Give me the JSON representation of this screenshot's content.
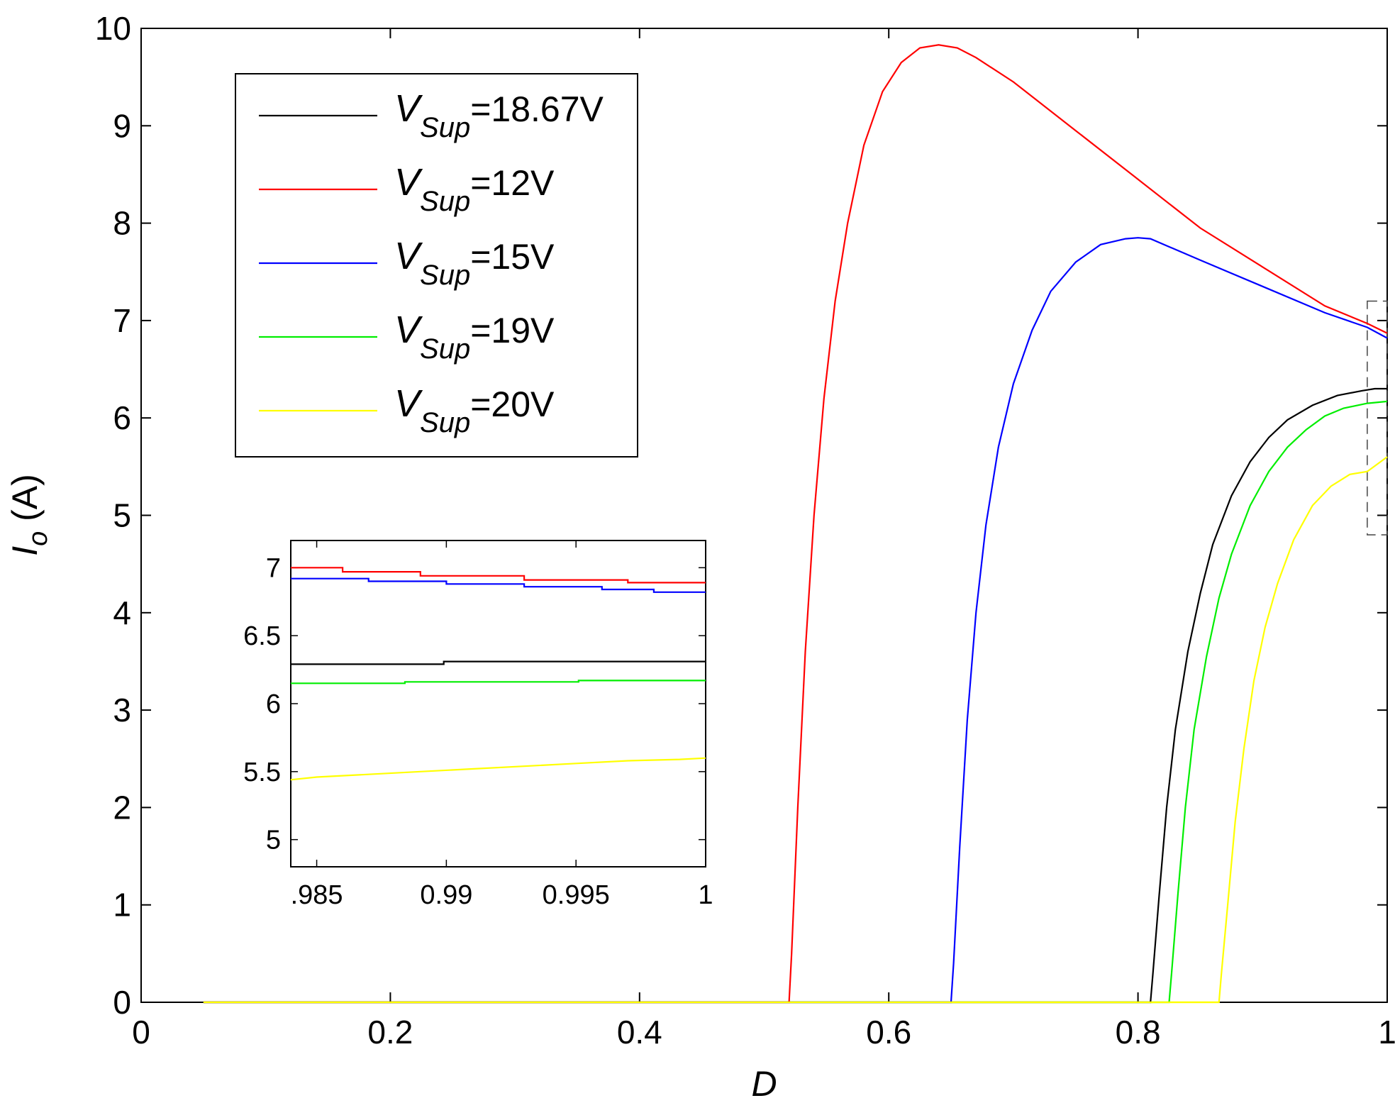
{
  "chart_data": [
    {
      "type": "line",
      "xlabel": "D",
      "ylabel": {
        "main": "I",
        "sub": "o",
        "unit": "(A)"
      },
      "xlim": [
        0,
        1
      ],
      "ylim": [
        0,
        10
      ],
      "xticks": [
        0,
        0.2,
        0.4,
        0.6,
        0.8,
        1
      ],
      "xtick_labels": [
        "0",
        "0.2",
        "0.4",
        "0.6",
        "0.8",
        "1"
      ],
      "yticks": [
        0,
        1,
        2,
        3,
        4,
        5,
        6,
        7,
        8,
        9,
        10
      ],
      "ytick_labels": [
        "0",
        "1",
        "2",
        "3",
        "4",
        "5",
        "6",
        "7",
        "8",
        "9",
        "10"
      ],
      "grid": false,
      "legend_position": "top-left",
      "zoom_box": {
        "x": [
          0.984,
          1.0
        ],
        "y": [
          4.8,
          7.2
        ]
      },
      "series": [
        {
          "name": "=18.67V",
          "label_main": "V",
          "label_sub": "Sup",
          "label_rest": "=18.67V",
          "color": "#000000",
          "x": [
            0.05,
            0.81,
            0.812,
            0.817,
            0.823,
            0.83,
            0.84,
            0.85,
            0.86,
            0.875,
            0.89,
            0.905,
            0.92,
            0.94,
            0.96,
            0.98,
            0.99,
            1.0
          ],
          "y": [
            0,
            0,
            0.3,
            1.1,
            2.0,
            2.8,
            3.6,
            4.2,
            4.7,
            5.2,
            5.55,
            5.8,
            5.98,
            6.13,
            6.23,
            6.28,
            6.3,
            6.3
          ]
        },
        {
          "name": "=12V",
          "label_main": "V",
          "label_sub": "Sup",
          "label_rest": "=12V",
          "color": "#ff0000",
          "x": [
            0.05,
            0.52,
            0.522,
            0.527,
            0.533,
            0.54,
            0.548,
            0.557,
            0.567,
            0.58,
            0.595,
            0.61,
            0.625,
            0.64,
            0.655,
            0.67,
            0.7,
            0.75,
            0.8,
            0.85,
            0.9,
            0.95,
            0.984,
            1.0
          ],
          "y": [
            0,
            0,
            0.5,
            2.0,
            3.6,
            5.0,
            6.2,
            7.2,
            8.0,
            8.8,
            9.35,
            9.65,
            9.8,
            9.83,
            9.8,
            9.7,
            9.45,
            8.95,
            8.45,
            7.95,
            7.55,
            7.15,
            6.97,
            6.87
          ]
        },
        {
          "name": "=15V",
          "label_main": "V",
          "label_sub": "Sup",
          "label_rest": "=15V",
          "color": "#0000ff",
          "x": [
            0.05,
            0.65,
            0.652,
            0.657,
            0.663,
            0.67,
            0.678,
            0.688,
            0.7,
            0.715,
            0.73,
            0.75,
            0.77,
            0.79,
            0.8,
            0.81,
            0.85,
            0.9,
            0.95,
            0.984,
            1.0
          ],
          "y": [
            0,
            0,
            0.4,
            1.6,
            2.9,
            4.0,
            4.9,
            5.7,
            6.35,
            6.9,
            7.3,
            7.6,
            7.78,
            7.84,
            7.85,
            7.84,
            7.62,
            7.35,
            7.08,
            6.93,
            6.82
          ]
        },
        {
          "name": "=19V",
          "label_main": "V",
          "label_sub": "Sup",
          "label_rest": "=19V",
          "color": "#00ee00",
          "x": [
            0.05,
            0.825,
            0.827,
            0.832,
            0.838,
            0.845,
            0.855,
            0.865,
            0.875,
            0.89,
            0.905,
            0.92,
            0.935,
            0.95,
            0.965,
            0.984,
            1.0
          ],
          "y": [
            0,
            0,
            0.3,
            1.1,
            2.0,
            2.8,
            3.55,
            4.15,
            4.6,
            5.1,
            5.45,
            5.7,
            5.88,
            6.02,
            6.1,
            6.15,
            6.17
          ]
        },
        {
          "name": "=20V",
          "label_main": "V",
          "label_sub": "Sup",
          "label_rest": "=20V",
          "color": "#ffff00",
          "x": [
            0.05,
            0.865,
            0.867,
            0.872,
            0.878,
            0.885,
            0.893,
            0.902,
            0.912,
            0.925,
            0.94,
            0.955,
            0.97,
            0.984,
            1.0
          ],
          "y": [
            0,
            0,
            0.3,
            1.0,
            1.85,
            2.6,
            3.3,
            3.85,
            4.3,
            4.75,
            5.1,
            5.3,
            5.42,
            5.45,
            5.6
          ]
        }
      ]
    },
    {
      "type": "line",
      "inset": true,
      "xlim": [
        0.984,
        1.0
      ],
      "ylim": [
        4.8,
        7.2
      ],
      "xticks": [
        0.985,
        0.99,
        0.995,
        1.0
      ],
      "xtick_labels": [
        ".985",
        "0.99",
        "0.995",
        "1"
      ],
      "yticks": [
        5,
        5.5,
        6,
        6.5,
        7
      ],
      "ytick_labels": [
        "5",
        "5.5",
        "6",
        "6.5",
        "7"
      ],
      "grid": false,
      "series": [
        {
          "color": "#000000",
          "x": [
            0.984,
            0.9899,
            0.9899,
            1.0
          ],
          "y": [
            6.29,
            6.29,
            6.31,
            6.31
          ]
        },
        {
          "color": "#ff0000",
          "x": [
            0.984,
            0.986,
            0.986,
            0.989,
            0.989,
            0.993,
            0.993,
            0.997,
            0.997,
            1.0
          ],
          "y": [
            7.0,
            7.0,
            6.97,
            6.97,
            6.94,
            6.94,
            6.91,
            6.91,
            6.89,
            6.89
          ]
        },
        {
          "color": "#0000ff",
          "x": [
            0.984,
            0.987,
            0.987,
            0.99,
            0.99,
            0.993,
            0.993,
            0.996,
            0.996,
            0.998,
            0.998,
            1.0
          ],
          "y": [
            6.92,
            6.92,
            6.9,
            6.9,
            6.88,
            6.88,
            6.86,
            6.86,
            6.84,
            6.84,
            6.82,
            6.82
          ]
        },
        {
          "color": "#00ee00",
          "x": [
            0.984,
            0.9884,
            0.9884,
            0.9951,
            0.9951,
            1.0
          ],
          "y": [
            6.15,
            6.15,
            6.16,
            6.16,
            6.17,
            6.17
          ]
        },
        {
          "color": "#ffff00",
          "x": [
            0.984,
            0.985,
            0.987,
            0.989,
            0.991,
            0.993,
            0.995,
            0.997,
            0.999,
            1.0
          ],
          "y": [
            5.44,
            5.46,
            5.48,
            5.5,
            5.52,
            5.54,
            5.56,
            5.58,
            5.59,
            5.6
          ]
        }
      ]
    }
  ]
}
